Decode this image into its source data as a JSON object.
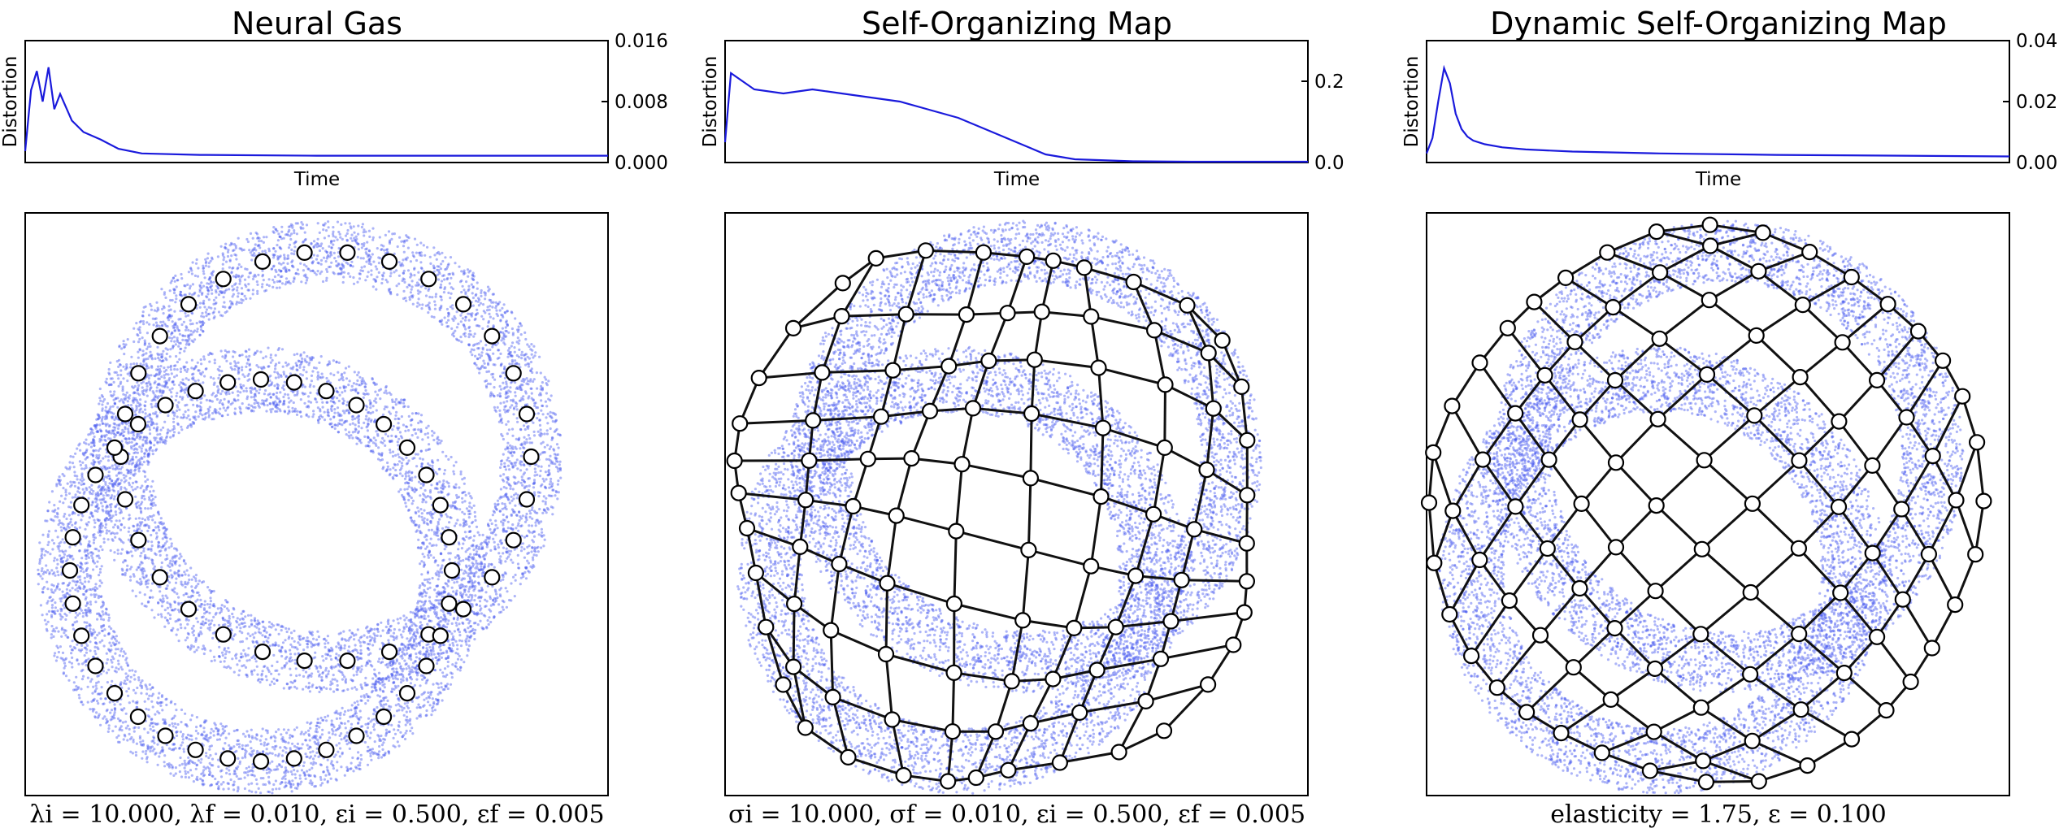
{
  "panels": [
    {
      "title": "Neural Gas",
      "distortion": {
        "ylabel": "Distortion",
        "xlabel": "Time",
        "ylim": [
          0,
          0.016
        ],
        "yticks": [
          "0.000",
          "0.008",
          "0.016"
        ],
        "ytick_values": [
          0,
          0.008,
          0.016
        ]
      },
      "caption": "λi = 10.000, λf = 0.010, εi = 0.500, εf = 0.005"
    },
    {
      "title": "Self-Organizing Map",
      "distortion": {
        "ylabel": "Distortion",
        "xlabel": "Time",
        "ylim": [
          0,
          0.3
        ],
        "yticks": [
          "0.0",
          "0.2"
        ],
        "ytick_values": [
          0,
          0.2
        ]
      },
      "caption": "σi = 10.000, σf = 0.010, εi = 0.500, εf = 0.005"
    },
    {
      "title": "Dynamic Self-Organizing Map",
      "distortion": {
        "ylabel": "Distortion",
        "xlabel": "Time",
        "ylim": [
          0,
          0.04
        ],
        "yticks": [
          "0.00",
          "0.02",
          "0.04"
        ],
        "ytick_values": [
          0,
          0.02,
          0.04
        ]
      },
      "caption": "elasticity = 1.75, ε = 0.100"
    }
  ],
  "chart_data": [
    {
      "type": "line",
      "title": "Neural Gas",
      "xlabel": "Time",
      "ylabel": "Distortion",
      "ylim": [
        0,
        0.016
      ],
      "x": [
        0,
        0.01,
        0.02,
        0.03,
        0.04,
        0.05,
        0.06,
        0.08,
        0.1,
        0.13,
        0.16,
        0.2,
        0.3,
        0.5,
        0.75,
        1.0
      ],
      "series": [
        {
          "values": [
            0.0015,
            0.0095,
            0.012,
            0.008,
            0.0125,
            0.007,
            0.009,
            0.0055,
            0.004,
            0.003,
            0.0018,
            0.0012,
            0.001,
            0.0009,
            0.0009,
            0.0009
          ]
        }
      ],
      "color": "#1a1adc"
    },
    {
      "type": "line",
      "title": "Self-Organizing Map",
      "xlabel": "Time",
      "ylabel": "Distortion",
      "ylim": [
        0,
        0.3
      ],
      "x": [
        0,
        0.01,
        0.05,
        0.1,
        0.15,
        0.2,
        0.25,
        0.3,
        0.35,
        0.4,
        0.45,
        0.5,
        0.55,
        0.6,
        0.7,
        0.8,
        1.0
      ],
      "series": [
        {
          "values": [
            0.05,
            0.22,
            0.18,
            0.17,
            0.18,
            0.17,
            0.16,
            0.15,
            0.13,
            0.11,
            0.08,
            0.05,
            0.02,
            0.008,
            0.003,
            0.002,
            0.002
          ]
        }
      ],
      "color": "#1a1adc"
    },
    {
      "type": "line",
      "title": "Dynamic Self-Organizing Map",
      "xlabel": "Time",
      "ylabel": "Distortion",
      "ylim": [
        0,
        0.04
      ],
      "x": [
        0,
        0.01,
        0.02,
        0.03,
        0.04,
        0.05,
        0.06,
        0.07,
        0.08,
        0.1,
        0.13,
        0.17,
        0.25,
        0.4,
        0.6,
        1.0
      ],
      "series": [
        {
          "values": [
            0.003,
            0.008,
            0.02,
            0.031,
            0.026,
            0.016,
            0.011,
            0.0085,
            0.0072,
            0.006,
            0.005,
            0.0043,
            0.0036,
            0.003,
            0.0025,
            0.002
          ]
        }
      ],
      "color": "#1a1adc"
    }
  ],
  "colors": {
    "samples": "#4a5cf0",
    "curve": "#1a1adc",
    "edges": "#111111",
    "nodes": "#ffffff"
  }
}
